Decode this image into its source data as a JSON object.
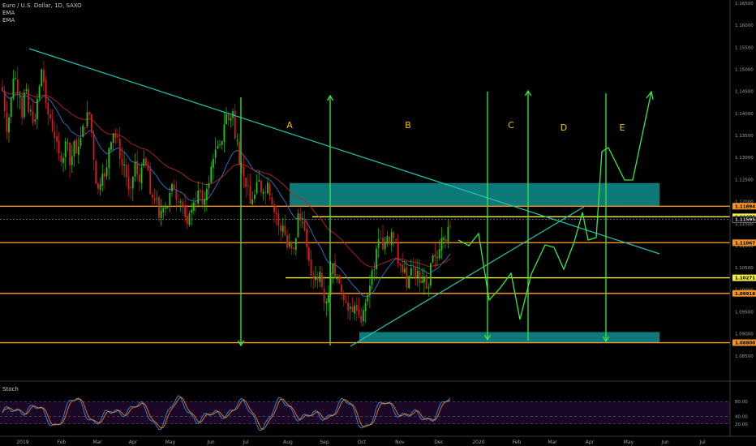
{
  "header": {
    "symbol": "Euro / U.S. Dollar, 1D, SAXO",
    "indicator1": "EMA",
    "indicator2": "EMA",
    "osc_label": "Stoch"
  },
  "colors": {
    "background": "#000000",
    "up": "#26c10f",
    "down": "#d81c1c",
    "ema_fast": "#2979c8",
    "ema_slow": "#b3281f",
    "zone": "#0f8a8a",
    "level_orange": "#f7931e",
    "level_yellow": "#f0f040",
    "projection": "#3ee63e",
    "trend": "#1fc7b3",
    "zone_labels": "#f5c400",
    "stoch_k": "#2b8fe8",
    "stoch_d": "#f0801a",
    "stoch_bg": "#1b0726"
  },
  "chart_data": {
    "type": "candlestick",
    "instrument": "EUR/USD",
    "timeframe": "1D",
    "x_range": [
      "2019-01-01",
      "2020-07-31"
    ],
    "x_ticks": [
      "2019",
      "Feb",
      "Mar",
      "Apr",
      "May",
      "Jun",
      "Jul",
      "Aug",
      "Sep",
      "Oct",
      "Nov",
      "Dec",
      "2020",
      "Feb",
      "Mar",
      "Apr",
      "May",
      "Jun",
      "Jul"
    ],
    "y_range": [
      1.08,
      1.165
    ],
    "y_ticks": [
      "1.16500",
      "1.16000",
      "1.15500",
      "1.15000",
      "1.14500",
      "1.14000",
      "1.13500",
      "1.13000",
      "1.12500",
      "1.12000",
      "1.11500",
      "1.11000",
      "1.10500",
      "1.10000",
      "1.09500",
      "1.09000",
      "1.08500"
    ],
    "price_levels": [
      {
        "value": 1.11894,
        "label": "1.11894",
        "color": "#f7931e",
        "badge": true
      },
      {
        "value": 1.11655,
        "label": "1.11655",
        "color": "#f0f040",
        "badge": true
      },
      {
        "value": 1.11595,
        "label": "1.11595",
        "color": "#c0c0c0",
        "badge": true
      },
      {
        "value": 1.11067,
        "label": "1.11067",
        "color": "#f7931e",
        "badge": true
      },
      {
        "value": 1.10271,
        "label": "1.10271",
        "color": "#f0f040",
        "badge": true
      },
      {
        "value": 1.09918,
        "label": "1.09918",
        "color": "#f7931e",
        "badge": true
      },
      {
        "value": 1.088,
        "label": "1.08800",
        "color": "#f7931e",
        "badge": true
      }
    ],
    "zones": [
      {
        "from": 1.119,
        "to": 1.1242
      },
      {
        "from": 1.088,
        "to": 1.0904
      }
    ],
    "zone_labels": [
      "A",
      "B",
      "C",
      "D",
      "E"
    ],
    "stoch_levels": [
      "80.00",
      "40.00",
      "20.00"
    ],
    "stoch_range": [
      0,
      100
    ],
    "closes": [
      1.1452,
      1.1405,
      1.1358,
      1.1391,
      1.1436,
      1.1479,
      1.1481,
      1.1441,
      1.1438,
      1.139,
      1.1447,
      1.1455,
      1.1403,
      1.1408,
      1.1379,
      1.1386,
      1.1433,
      1.1462,
      1.15,
      1.1471,
      1.1424,
      1.1398,
      1.1389,
      1.136,
      1.1344,
      1.1336,
      1.1309,
      1.129,
      1.1299,
      1.1337,
      1.1334,
      1.1283,
      1.1303,
      1.1337,
      1.1309,
      1.1325,
      1.1344,
      1.1372,
      1.1368,
      1.1403,
      1.1398,
      1.1356,
      1.1295,
      1.124,
      1.1229,
      1.124,
      1.1263,
      1.1256,
      1.1277,
      1.1321,
      1.1335,
      1.1355,
      1.1346,
      1.1346,
      1.1297,
      1.1282,
      1.1284,
      1.1255,
      1.1228,
      1.123,
      1.1256,
      1.129,
      1.1262,
      1.1245,
      1.1277,
      1.1297,
      1.1282,
      1.127,
      1.1217,
      1.1209,
      1.1202,
      1.1207,
      1.1163,
      1.1179,
      1.1186,
      1.1187,
      1.119,
      1.122,
      1.124,
      1.1229,
      1.1204,
      1.12,
      1.12,
      1.1187,
      1.1165,
      1.115,
      1.1173,
      1.1181,
      1.1198,
      1.1193,
      1.1225,
      1.1222,
      1.1194,
      1.1206,
      1.1229,
      1.1242,
      1.128,
      1.1297,
      1.1318,
      1.1326,
      1.133,
      1.1337,
      1.1375,
      1.1398,
      1.1385,
      1.1389,
      1.1405,
      1.1343,
      1.134,
      1.1285,
      1.1277,
      1.1257,
      1.1233,
      1.1235,
      1.1195,
      1.1205,
      1.1216,
      1.1244,
      1.1249,
      1.1221,
      1.1222,
      1.1222,
      1.1243,
      1.1213,
      1.1194,
      1.1176,
      1.1172,
      1.1146,
      1.1133,
      1.1145,
      1.1124,
      1.1096,
      1.1107,
      1.1093,
      1.1092,
      1.1117,
      1.1173,
      1.1157,
      1.1154,
      1.1134,
      1.1097,
      1.1066,
      1.1032,
      1.1025,
      1.103,
      1.1021,
      1.1041,
      1.1006,
      1.0971,
      1.0973,
      1.0989,
      1.1039,
      1.1059,
      1.1027,
      1.103,
      1.1014,
      1.0995,
      1.0976,
      1.097,
      1.0953,
      1.0961,
      1.0949,
      1.0964,
      1.0952,
      1.0943,
      1.0926,
      1.0954,
      1.097,
      1.0989,
      1.1009,
      1.1043,
      1.1046,
      1.1093,
      1.1115,
      1.1116,
      1.1092,
      1.1107,
      1.1122,
      1.1104,
      1.1131,
      1.1117,
      1.1112,
      1.1059,
      1.1054,
      1.1039,
      1.1048,
      1.1004,
      1.1031,
      1.1049,
      1.1051,
      1.1027,
      1.1043,
      1.1014,
      1.102,
      1.103,
      1.1002,
      1.1006,
      1.106,
      1.1078,
      1.1074,
      1.1074,
      1.1092,
      1.1117,
      1.1118,
      1.1106,
      1.1143,
      1.1145
    ]
  }
}
